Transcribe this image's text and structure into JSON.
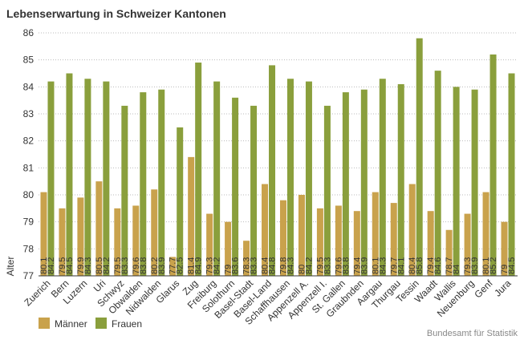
{
  "chart_data": {
    "type": "bar",
    "title": "Lebenserwartung in Schweizer Kantonen",
    "y_label": "Alter",
    "source": "Bundesamt für Statistik",
    "categories": [
      "Zuerich",
      "Bern",
      "Luzern",
      "Uri",
      "Schwyz",
      "Obwalden",
      "Nidwalden",
      "Glarus",
      "Zug",
      "Freiburg",
      "Solothurn",
      "Basel-Stadt",
      "Basel-Land",
      "Schaffhausen",
      "Appenzell A.",
      "Appenzell I.",
      "St. Gallen",
      "Graubnden",
      "Aargau",
      "Thurgau",
      "Tessin",
      "Waadt",
      "Wallis",
      "Neuenburg",
      "Genf",
      "Jura"
    ],
    "series": [
      {
        "name": "Männer",
        "color": "#c9a24c",
        "values": [
          80.1,
          79.5,
          79.9,
          80.5,
          79.5,
          79.6,
          80.2,
          77.7,
          81.4,
          79.3,
          79.0,
          78.3,
          80.4,
          79.8,
          80.0,
          79.5,
          79.6,
          79.4,
          80.1,
          79.7,
          80.4,
          79.4,
          78.7,
          79.3,
          80.1,
          79.0
        ]
      },
      {
        "name": "Frauen",
        "color": "#8a9f3c",
        "values": [
          84.2,
          84.5,
          84.3,
          84.2,
          83.3,
          83.8,
          83.9,
          82.5,
          84.9,
          84.2,
          83.6,
          83.3,
          84.8,
          84.3,
          84.2,
          83.3,
          83.8,
          83.9,
          84.3,
          84.1,
          85.8,
          84.6,
          84.0,
          83.9,
          85.2,
          84.5
        ]
      }
    ],
    "ylim": [
      77,
      86
    ],
    "yticks": [
      77,
      78,
      79,
      80,
      81,
      82,
      83,
      84,
      85,
      86
    ],
    "grid": true
  }
}
